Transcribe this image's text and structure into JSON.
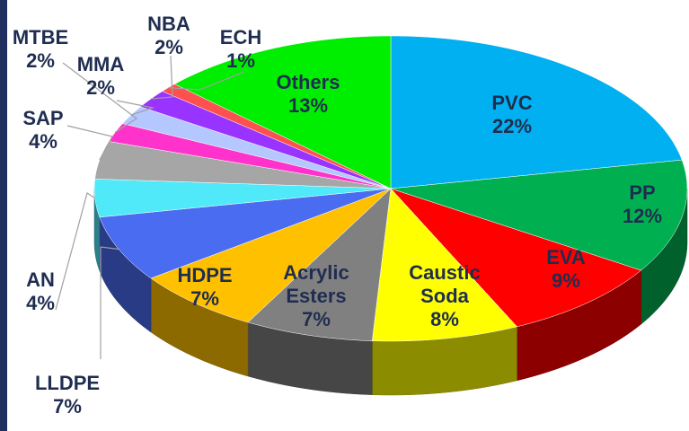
{
  "chart_data": {
    "type": "pie",
    "categories": [
      "PVC",
      "PP",
      "EVA",
      "Caustic Soda",
      "Acrylic Esters",
      "HDPE",
      "LLDPE",
      "AN",
      "SAP",
      "MTBE",
      "MMA",
      "NBA",
      "ECH",
      "Others"
    ],
    "values": [
      22,
      12,
      9,
      8,
      7,
      7,
      7,
      4,
      4,
      2,
      2,
      2,
      1,
      13
    ],
    "value_labels": [
      "22%",
      "12%",
      "9%",
      "8%",
      "7%",
      "7%",
      "7%",
      "4%",
      "4%",
      "2%",
      "2%",
      "2%",
      "1%",
      "13%"
    ],
    "colors": [
      "#00b0f0",
      "#00b050",
      "#ff0000",
      "#ffff00",
      "#808080",
      "#ffc000",
      "#4a6cf0",
      "#4fe9f9",
      "#a6a6a6",
      "#ff33cc",
      "#b4c7ff",
      "#9933ff",
      "#ff5050",
      "#00ee00"
    ]
  }
}
